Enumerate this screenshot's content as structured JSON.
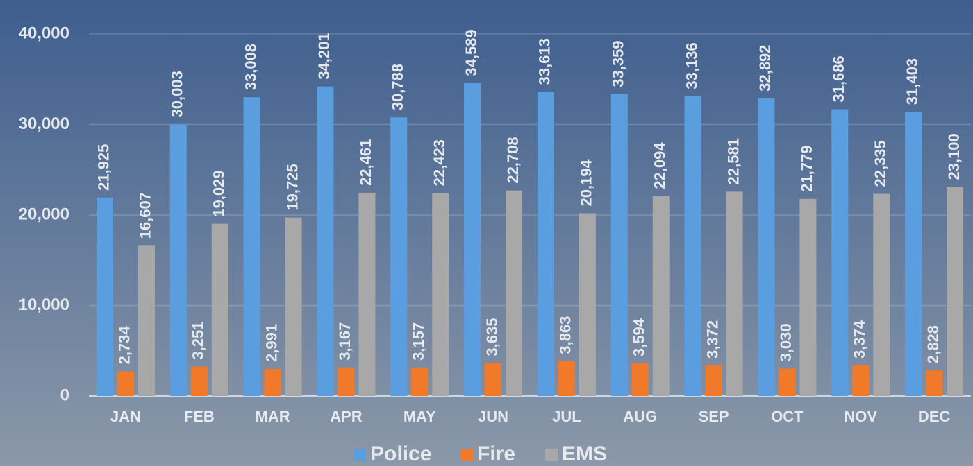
{
  "chart_data": {
    "type": "bar",
    "categories": [
      "JAN",
      "FEB",
      "MAR",
      "APR",
      "MAY",
      "JUN",
      "JUL",
      "AUG",
      "SEP",
      "OCT",
      "NOV",
      "DEC"
    ],
    "series": [
      {
        "name": "Police",
        "color": "#5b9ee0",
        "values": [
          21925,
          30003,
          33008,
          34201,
          30788,
          34589,
          33613,
          33359,
          33136,
          32892,
          31686,
          31403
        ],
        "value_labels": [
          "21,925",
          "30,003",
          "33,008",
          "34,201",
          "30,788",
          "34,589",
          "33,613",
          "33,359",
          "33,136",
          "32,892",
          "31,686",
          "31,403"
        ]
      },
      {
        "name": "Fire",
        "color": "#f07a2a",
        "values": [
          2734,
          3251,
          2991,
          3167,
          3157,
          3635,
          3863,
          3594,
          3372,
          3030,
          3374,
          2828
        ],
        "value_labels": [
          "2,734",
          "3,251",
          "2,991",
          "3,167",
          "3,157",
          "3,635",
          "3,863",
          "3,594",
          "3,372",
          "3,030",
          "3,374",
          "2,828"
        ]
      },
      {
        "name": "EMS",
        "color": "#a8a8a8",
        "values": [
          16607,
          19029,
          19725,
          22461,
          22423,
          22708,
          20194,
          22094,
          22581,
          21779,
          22335,
          23100
        ],
        "value_labels": [
          "16,607",
          "19,029",
          "19,725",
          "22,461",
          "22,423",
          "22,708",
          "20,194",
          "22,094",
          "22,581",
          "21,779",
          "22,335",
          "23,100"
        ]
      }
    ],
    "ylim": [
      0,
      40000
    ],
    "yticks": [
      0,
      {
        "value": 10000,
        "label": "10,000"
      },
      {
        "value": 20000,
        "label": "20,000"
      },
      {
        "value": 30000,
        "label": "30,000"
      },
      {
        "value": 40000,
        "label": "40,000"
      }
    ],
    "grid": true,
    "legend": "bottom"
  }
}
